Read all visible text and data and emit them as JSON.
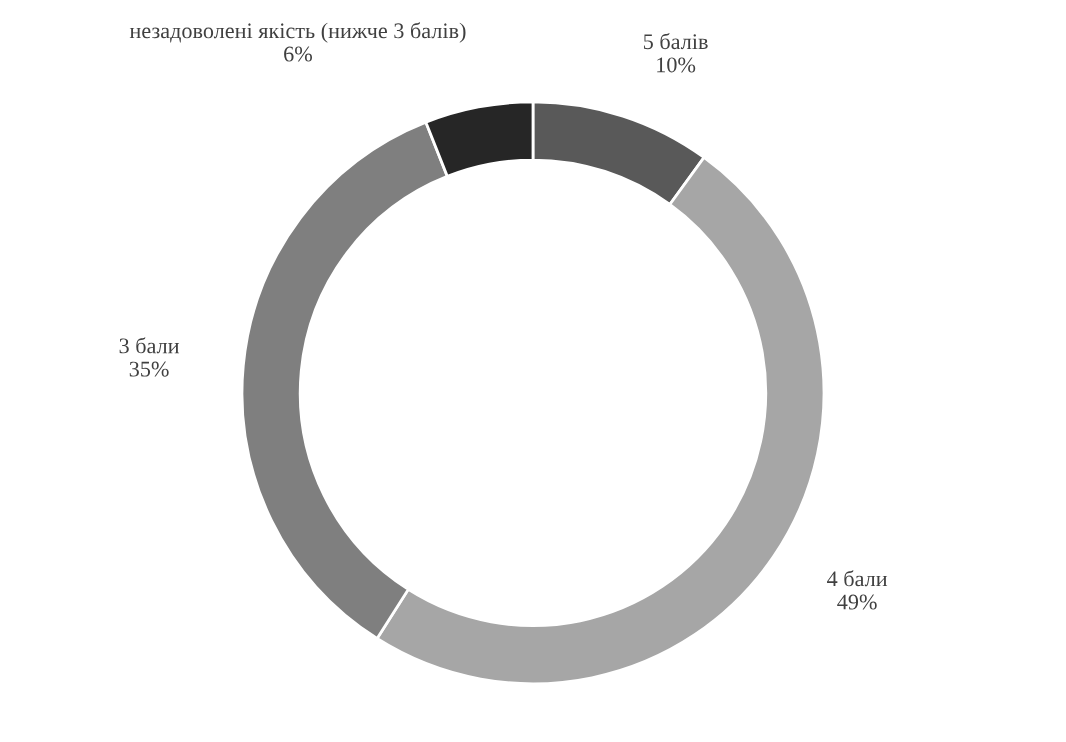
{
  "chart_data": {
    "type": "donut",
    "categories": [
      "5 балів",
      "4 бали",
      "3 бали",
      "незадоволені якість (нижче 3 балів)"
    ],
    "values": [
      10,
      49,
      35,
      6
    ],
    "value_labels": [
      "10%",
      "49%",
      "35%",
      "6%"
    ],
    "colors": [
      "#595959",
      "#a6a6a6",
      "#7f7f7f",
      "#262626"
    ],
    "legend": false
  }
}
